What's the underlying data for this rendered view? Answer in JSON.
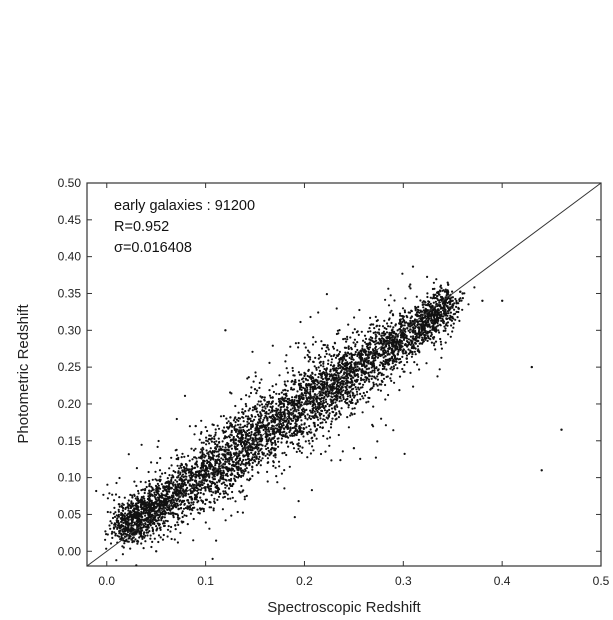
{
  "chart_data": {
    "type": "scatter",
    "title": "",
    "xlabel": "Spectroscopic  Redshift",
    "ylabel": "Photometric  Redshift",
    "xlim": [
      -0.02,
      0.5
    ],
    "ylim": [
      -0.02,
      0.5
    ],
    "x_ticks": [
      "0.0",
      "0.1",
      "0.2",
      "0.3",
      "0.4",
      "0.5"
    ],
    "y_ticks": [
      "0.00",
      "0.05",
      "0.10",
      "0.15",
      "0.20",
      "0.25",
      "0.30",
      "0.35",
      "0.40",
      "0.45",
      "0.50"
    ],
    "grid": false,
    "legend": "none",
    "point_color": "#111111",
    "reference_line": {
      "from": [
        -0.02,
        -0.02
      ],
      "to": [
        0.5,
        0.5
      ]
    },
    "annotations": [
      "early galaxies : 91200",
      "R=0.952",
      "σ=0.016408"
    ],
    "series": [
      {
        "points": [
          [
            0.02,
            0.03
          ],
          [
            0.03,
            0.045
          ],
          [
            0.04,
            0.055
          ],
          [
            0.05,
            0.065
          ],
          [
            0.06,
            0.075
          ],
          [
            0.07,
            0.085
          ],
          [
            0.08,
            0.09
          ],
          [
            0.09,
            0.1
          ],
          [
            0.1,
            0.11
          ],
          [
            0.11,
            0.12
          ],
          [
            0.12,
            0.13
          ],
          [
            0.13,
            0.14
          ],
          [
            0.14,
            0.15
          ],
          [
            0.15,
            0.16
          ],
          [
            0.16,
            0.17
          ],
          [
            0.17,
            0.175
          ],
          [
            0.18,
            0.185
          ],
          [
            0.19,
            0.195
          ],
          [
            0.2,
            0.2
          ],
          [
            0.21,
            0.21
          ],
          [
            0.22,
            0.22
          ],
          [
            0.23,
            0.228
          ],
          [
            0.24,
            0.235
          ],
          [
            0.25,
            0.245
          ],
          [
            0.26,
            0.255
          ],
          [
            0.27,
            0.262
          ],
          [
            0.28,
            0.27
          ],
          [
            0.29,
            0.28
          ],
          [
            0.3,
            0.29
          ],
          [
            0.31,
            0.3
          ],
          [
            0.32,
            0.31
          ],
          [
            0.33,
            0.32
          ],
          [
            0.34,
            0.33
          ],
          [
            0.35,
            0.34
          ],
          [
            0.36,
            0.35
          ],
          [
            0.12,
            0.3
          ],
          [
            0.38,
            0.34
          ],
          [
            0.4,
            0.34
          ],
          [
            0.44,
            0.11
          ],
          [
            0.46,
            0.165
          ],
          [
            0.43,
            0.25
          ],
          [
            0.05,
            0.0
          ],
          [
            0.15,
            0.22
          ],
          [
            0.09,
            0.17
          ],
          [
            0.25,
            0.14
          ]
        ],
        "density_band": [
          {
            "x": 0.015,
            "y": 0.03,
            "spread": 0.012
          },
          {
            "x": 0.05,
            "y": 0.06,
            "spread": 0.016
          },
          {
            "x": 0.1,
            "y": 0.105,
            "spread": 0.02
          },
          {
            "x": 0.15,
            "y": 0.155,
            "spread": 0.022
          },
          {
            "x": 0.2,
            "y": 0.2,
            "spread": 0.022
          },
          {
            "x": 0.25,
            "y": 0.245,
            "spread": 0.02
          },
          {
            "x": 0.3,
            "y": 0.29,
            "spread": 0.016
          },
          {
            "x": 0.35,
            "y": 0.34,
            "spread": 0.012
          }
        ]
      }
    ]
  }
}
